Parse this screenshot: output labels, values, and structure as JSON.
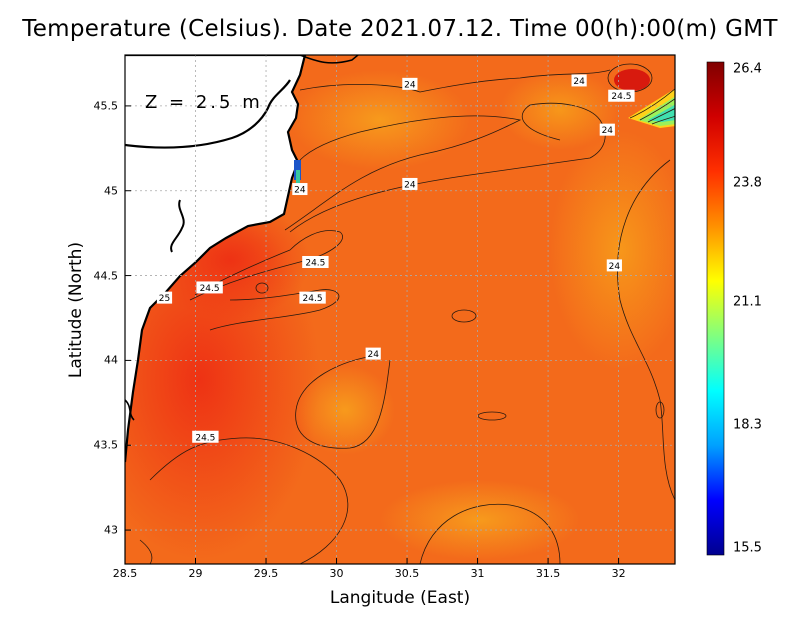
{
  "title": "Temperature (Celsius). Date 2021.07.12. Time 00(h):00(m)  GMT",
  "depth_label": "Z = 2.5 m",
  "axes": {
    "xlabel": "Langitude (East)",
    "ylabel": "Latitude (North)",
    "xticks": [
      "28.5",
      "29",
      "29.5",
      "30",
      "30.5",
      "31",
      "31.5",
      "32"
    ],
    "xtick_values": [
      28.5,
      29,
      29.5,
      30,
      30.5,
      31,
      31.5,
      32
    ],
    "yticks": [
      "45.5",
      "45",
      "44.5",
      "44",
      "43.5",
      "43"
    ],
    "ytick_values": [
      45.5,
      45,
      44.5,
      44,
      43.5,
      43
    ],
    "xlim": [
      28.5,
      32.4
    ],
    "ylim": [
      42.8,
      45.8
    ],
    "grid": true
  },
  "colorbar": {
    "ticks": [
      "26.4",
      "23.8",
      "21.1",
      "18.3",
      "15.5"
    ],
    "tick_values": [
      26.4,
      23.8,
      21.1,
      18.3,
      15.5
    ],
    "range": [
      15.5,
      26.4
    ],
    "colors": [
      "#00008f",
      "#0000ff",
      "#00a0ff",
      "#00ffff",
      "#80ff80",
      "#ffff00",
      "#ff9000",
      "#ff3000",
      "#d00000",
      "#800000"
    ]
  },
  "chart_data": {
    "type": "heatmap",
    "variable": "Temperature",
    "units": "Celsius",
    "date": "2021.07.12",
    "time": "00(h):00(m) GMT",
    "depth": "Z = 2.5 m",
    "contour_labels": [
      {
        "text": "24",
        "lon": 30.52,
        "lat": 45.63
      },
      {
        "text": "24",
        "lon": 31.72,
        "lat": 45.65
      },
      {
        "text": "24.5",
        "lon": 32.02,
        "lat": 45.56
      },
      {
        "text": "24",
        "lon": 31.92,
        "lat": 45.36
      },
      {
        "text": "24",
        "lon": 29.74,
        "lat": 45.01
      },
      {
        "text": "24",
        "lon": 30.52,
        "lat": 45.04
      },
      {
        "text": "24.5",
        "lon": 29.85,
        "lat": 44.58
      },
      {
        "text": "24",
        "lon": 31.97,
        "lat": 44.56
      },
      {
        "text": "24.5",
        "lon": 29.1,
        "lat": 44.43
      },
      {
        "text": "25",
        "lon": 28.78,
        "lat": 44.37
      },
      {
        "text": "24.5",
        "lon": 29.83,
        "lat": 44.37
      },
      {
        "text": "24",
        "lon": 30.26,
        "lat": 44.04
      },
      {
        "text": "24.5",
        "lon": 29.07,
        "lat": 43.55
      }
    ]
  }
}
